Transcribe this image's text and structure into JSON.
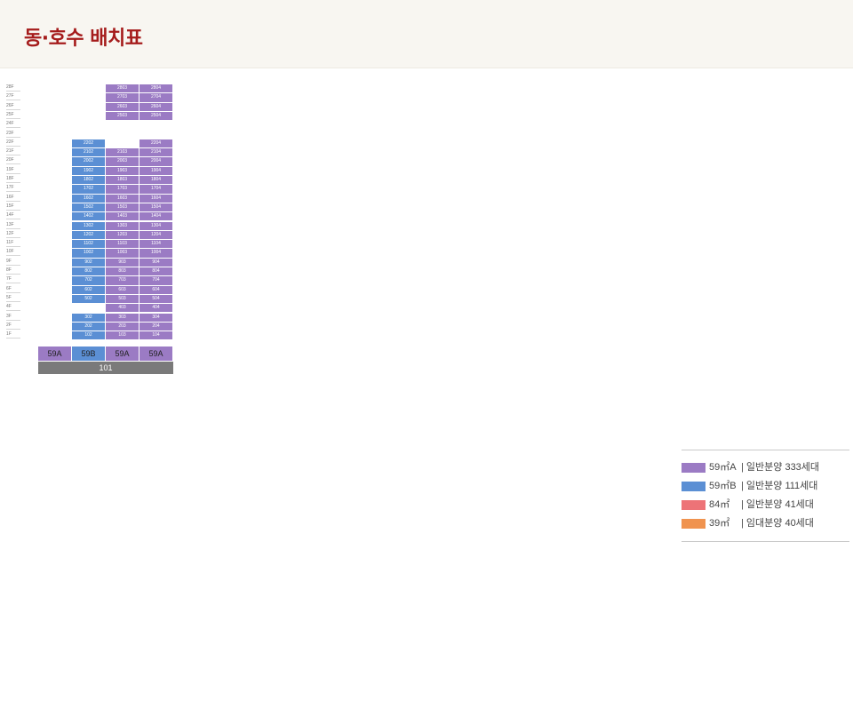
{
  "title": "동·호수 배치표",
  "colors": {
    "59A": "#9b7bc4",
    "59B": "#5b8fd4",
    "84": "#ed7377",
    "39": "#f0934f",
    "empty": "#e7e7e7",
    "type_bar": "#dcdcdc"
  },
  "legend": [
    {
      "key": "59A",
      "type": "59㎡A",
      "desc": "| 일반분양 333세대"
    },
    {
      "key": "59B",
      "type": "59㎡B",
      "desc": "| 일반분양 111세대"
    },
    {
      "key": "84",
      "type": "84㎡",
      "desc": "| 일반분양 41세대"
    },
    {
      "key": "39",
      "type": "39㎡",
      "desc": "| 임대분양 40세대"
    }
  ],
  "buildings": [
    {
      "name": "101",
      "types": [
        "59A",
        "59B",
        "59A",
        "59A"
      ],
      "units": [
        [
          0,
          0,
          0,
          0,
          0,
          0,
          0,
          0,
          0,
          0,
          0,
          0,
          0,
          0,
          0,
          0,
          0,
          0,
          0,
          0,
          0,
          0,
          0,
          0,
          0,
          0,
          0,
          0
        ],
        [
          1,
          1,
          1,
          0,
          1,
          1,
          1,
          1,
          1,
          1,
          1,
          1,
          1,
          1,
          1,
          1,
          1,
          1,
          1,
          1,
          1,
          1,
          0,
          0,
          0,
          0,
          0,
          0
        ],
        [
          1,
          1,
          1,
          1,
          1,
          1,
          1,
          1,
          1,
          1,
          1,
          1,
          1,
          1,
          1,
          1,
          1,
          1,
          1,
          1,
          1,
          0,
          0,
          0,
          1,
          1,
          1,
          1
        ],
        [
          1,
          1,
          1,
          1,
          1,
          1,
          1,
          1,
          1,
          1,
          1,
          1,
          1,
          1,
          1,
          1,
          1,
          1,
          1,
          1,
          1,
          1,
          0,
          0,
          1,
          1,
          1,
          1
        ]
      ]
    }
  ]
}
